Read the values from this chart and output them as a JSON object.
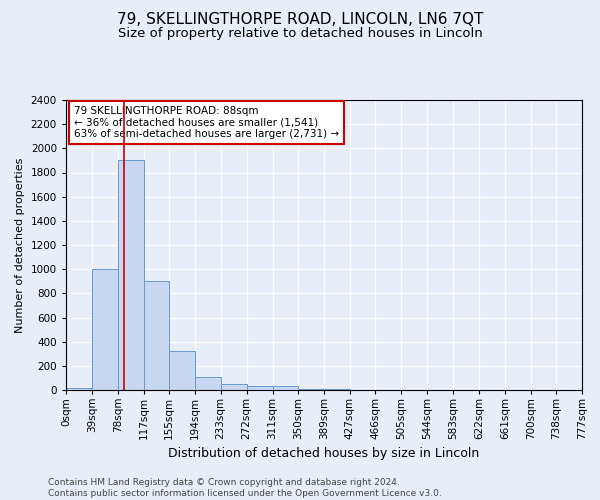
{
  "title": "79, SKELLINGTHORPE ROAD, LINCOLN, LN6 7QT",
  "subtitle": "Size of property relative to detached houses in Lincoln",
  "xlabel": "Distribution of detached houses by size in Lincoln",
  "ylabel": "Number of detached properties",
  "footer_line1": "Contains HM Land Registry data © Crown copyright and database right 2024.",
  "footer_line2": "Contains public sector information licensed under the Open Government Licence v3.0.",
  "bin_edges": [
    0,
    39,
    78,
    117,
    155,
    194,
    233,
    272,
    311,
    350,
    389,
    427,
    466,
    505,
    544,
    583,
    622,
    661,
    700,
    738,
    777
  ],
  "bin_labels": [
    "0sqm",
    "39sqm",
    "78sqm",
    "117sqm",
    "155sqm",
    "194sqm",
    "233sqm",
    "272sqm",
    "311sqm",
    "350sqm",
    "389sqm",
    "427sqm",
    "466sqm",
    "505sqm",
    "544sqm",
    "583sqm",
    "622sqm",
    "661sqm",
    "700sqm",
    "738sqm",
    "777sqm"
  ],
  "bar_values": [
    20,
    1000,
    1900,
    900,
    320,
    110,
    50,
    30,
    30,
    5,
    5,
    2,
    2,
    1,
    1,
    0,
    0,
    0,
    0,
    0
  ],
  "bar_facecolor": "#c8d8f0",
  "bar_edgecolor": "#6699cc",
  "background_color": "#e8eef8",
  "grid_color": "#ffffff",
  "property_line_x": 88,
  "property_line_color": "#cc0000",
  "ylim": [
    0,
    2400
  ],
  "annotation_text": "79 SKELLINGTHORPE ROAD: 88sqm\n← 36% of detached houses are smaller (1,541)\n63% of semi-detached houses are larger (2,731) →",
  "title_fontsize": 11,
  "subtitle_fontsize": 9.5,
  "xlabel_fontsize": 9,
  "ylabel_fontsize": 8,
  "tick_fontsize": 7.5,
  "annotation_fontsize": 7.5,
  "footer_fontsize": 6.5
}
